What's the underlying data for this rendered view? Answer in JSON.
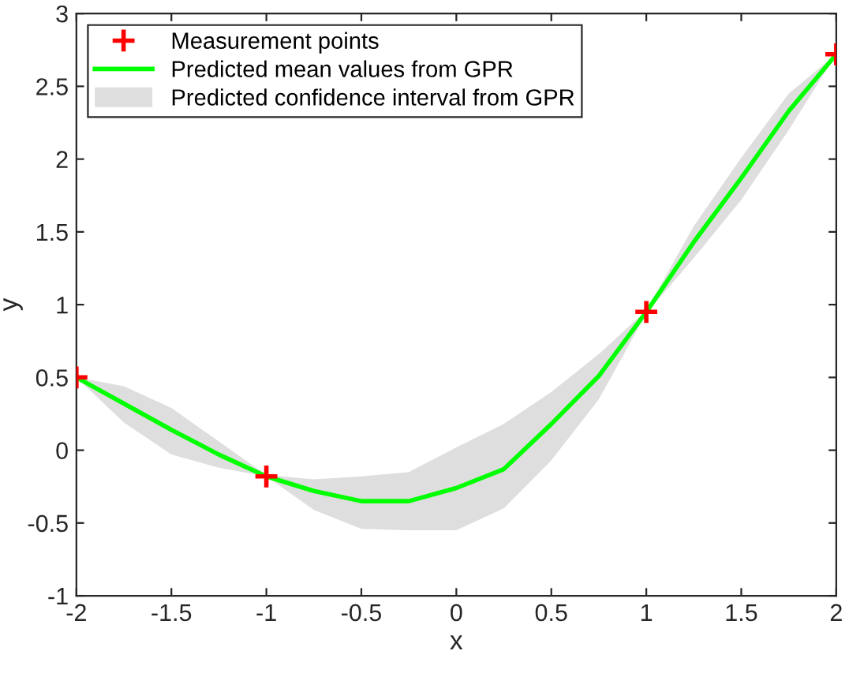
{
  "chart_data": {
    "type": "line",
    "xlabel": "x",
    "ylabel": "y",
    "xlim": [
      -2,
      2
    ],
    "ylim": [
      -1,
      3
    ],
    "xticks": [
      -2,
      -1.5,
      -1,
      -0.5,
      0,
      0.5,
      1,
      1.5,
      2
    ],
    "yticks": [
      -1,
      -0.5,
      0,
      0.5,
      1,
      1.5,
      2,
      2.5,
      3
    ],
    "grid": false,
    "legend": "top left",
    "annotations": [
      "Predicted confidence interval from GPR"
    ],
    "series": [
      {
        "type": "scatter",
        "name": "Measurement points",
        "color": "#ff0000",
        "marker": "cross",
        "x": [
          -2,
          -1,
          1,
          2
        ],
        "values": [
          0.5,
          -0.18,
          0.95,
          2.72
        ]
      },
      {
        "name": "Predicted mean values from GPR",
        "color": "#00ff00",
        "line_style": "solid",
        "x": [
          -2,
          -1.75,
          -1.5,
          -1.25,
          -1,
          -0.75,
          -0.5,
          -0.25,
          0,
          0.25,
          0.5,
          0.75,
          1,
          1.25,
          1.5,
          1.75,
          2
        ],
        "values": [
          0.5,
          0.32,
          0.14,
          -0.03,
          -0.18,
          -0.28,
          -0.35,
          -0.35,
          -0.26,
          -0.13,
          0.18,
          0.51,
          0.95,
          1.43,
          1.87,
          2.33,
          2.72
        ],
        "lower": [
          0.5,
          0.19,
          -0.03,
          -0.12,
          -0.18,
          -0.41,
          -0.54,
          -0.55,
          -0.55,
          -0.4,
          -0.07,
          0.35,
          0.94,
          1.32,
          1.72,
          2.2,
          2.72
        ],
        "upper": [
          0.5,
          0.44,
          0.29,
          0.06,
          -0.17,
          -0.2,
          -0.18,
          -0.15,
          0.02,
          0.18,
          0.4,
          0.66,
          0.96,
          1.54,
          2.01,
          2.45,
          2.72
        ]
      }
    ]
  }
}
